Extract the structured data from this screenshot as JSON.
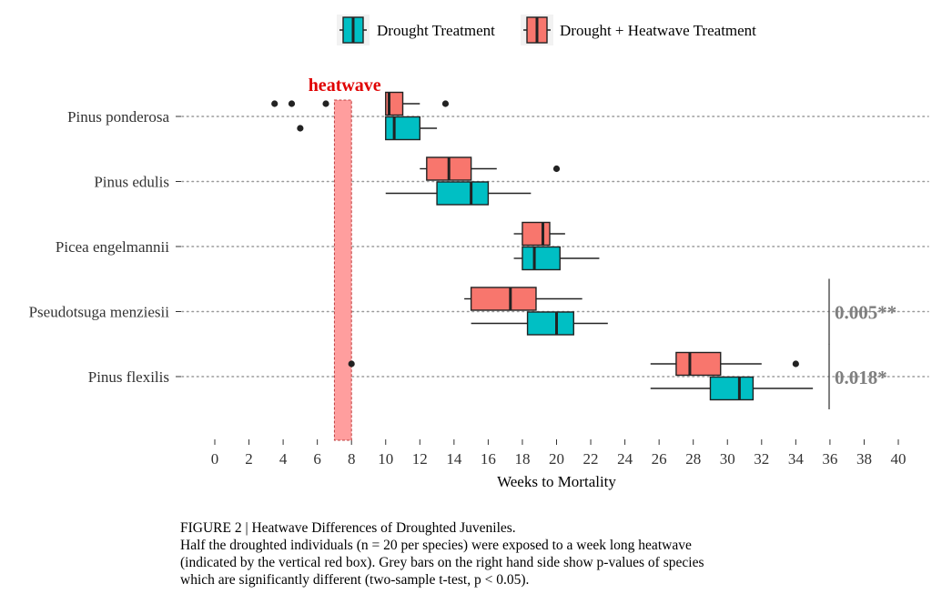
{
  "chart_data": {
    "type": "boxplot",
    "orientation": "horizontal",
    "xlabel": "Weeks to Mortality",
    "xlim": [
      0,
      40
    ],
    "xticks": [
      0,
      2,
      4,
      6,
      8,
      10,
      12,
      14,
      16,
      18,
      20,
      22,
      24,
      26,
      28,
      30,
      32,
      34,
      36,
      38,
      40
    ],
    "grid": "dotted horizontal lines at each species",
    "legend_position": "top",
    "legend": [
      {
        "label": "Drought Treatment",
        "color": "#00BFC4"
      },
      {
        "label": "Drought + Heatwave Treatment",
        "color": "#F8766D"
      }
    ],
    "heatwave_band": {
      "label": "heatwave",
      "x_start": 7,
      "x_end": 8,
      "color": "#FF9E9E",
      "label_color": "#E00000"
    },
    "categories": [
      "Pinus ponderosa",
      "Pinus edulis",
      "Picea engelmannii",
      "Pseudotsuga menziesii",
      "Pinus flexilis"
    ],
    "series": [
      {
        "name": "Drought + Heatwave Treatment",
        "color": "#F8766D",
        "boxes": [
          {
            "species": "Pinus ponderosa",
            "whisker_low": 10,
            "q1": 10,
            "median": 10.2,
            "q3": 11,
            "whisker_high": 12,
            "outliers": [
              3.5,
              4.5,
              6.5,
              13.5
            ]
          },
          {
            "species": "Pinus edulis",
            "whisker_low": 12,
            "q1": 12.4,
            "median": 13.7,
            "q3": 15,
            "whisker_high": 16.5,
            "outliers": [
              20
            ]
          },
          {
            "species": "Picea engelmannii",
            "whisker_low": 17.5,
            "q1": 18,
            "median": 19.2,
            "q3": 19.6,
            "whisker_high": 20.5,
            "outliers": []
          },
          {
            "species": "Pseudotsuga menziesii",
            "whisker_low": 14.6,
            "q1": 15,
            "median": 17.3,
            "q3": 18.8,
            "whisker_high": 21.5,
            "outliers": []
          },
          {
            "species": "Pinus flexilis",
            "whisker_low": 25.5,
            "q1": 27,
            "median": 27.8,
            "q3": 29.6,
            "whisker_high": 32,
            "outliers": [
              8,
              34
            ]
          }
        ]
      },
      {
        "name": "Drought Treatment",
        "color": "#00BFC4",
        "boxes": [
          {
            "species": "Pinus ponderosa",
            "whisker_low": 10,
            "q1": 10,
            "median": 10.5,
            "q3": 12,
            "whisker_high": 13,
            "outliers": [
              5
            ]
          },
          {
            "species": "Pinus edulis",
            "whisker_low": 10,
            "q1": 13,
            "median": 15,
            "q3": 16,
            "whisker_high": 18.5,
            "outliers": []
          },
          {
            "species": "Picea engelmannii",
            "whisker_low": 17.5,
            "q1": 18,
            "median": 18.7,
            "q3": 20.2,
            "whisker_high": 22.5,
            "outliers": []
          },
          {
            "species": "Pseudotsuga menziesii",
            "whisker_low": 15,
            "q1": 18.3,
            "median": 20,
            "q3": 21,
            "whisker_high": 23,
            "outliers": []
          },
          {
            "species": "Pinus flexilis",
            "whisker_low": 25.5,
            "q1": 29,
            "median": 30.7,
            "q3": 31.5,
            "whisker_high": 35,
            "outliers": []
          }
        ]
      }
    ],
    "annotations": [
      {
        "species": "Pseudotsuga menziesii",
        "text": "0.005**",
        "color": "#7F7F7F"
      },
      {
        "species": "Pinus flexilis",
        "text": "0.018*",
        "color": "#7F7F7F"
      }
    ]
  },
  "caption": {
    "line1": "FIGURE 2 | Heatwave Differences of Droughted Juveniles.",
    "line2": "Half the droughted individuals (n = 20 per species) were exposed to a week long heatwave",
    "line3": "(indicated by the vertical red box). Grey bars on the right hand side show p-values of species",
    "line4": "which are significantly different (two-sample t-test, p < 0.05)."
  }
}
